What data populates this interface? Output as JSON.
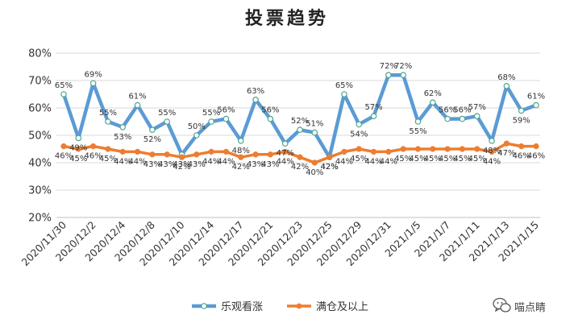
{
  "chart_data": {
    "type": "line",
    "title": "投票趋势",
    "xlabel": "",
    "ylabel": "",
    "ylim": [
      20,
      80
    ],
    "yticks": [
      20,
      30,
      40,
      50,
      60,
      70,
      80
    ],
    "ytick_labels": [
      "20%",
      "30%",
      "40%",
      "50%",
      "60%",
      "70%",
      "80%"
    ],
    "grid": "horizontal",
    "legend_position": "bottom",
    "categories": [
      "2020/11/30",
      "2020/12/1",
      "2020/12/2",
      "2020/12/3",
      "2020/12/4",
      "2020/12/7",
      "2020/12/8",
      "2020/12/9",
      "2020/12/10",
      "2020/12/11",
      "2020/12/14",
      "2020/12/15",
      "2020/12/17",
      "2020/12/18",
      "2020/12/21",
      "2020/12/22",
      "2020/12/23",
      "2020/12/24",
      "2020/12/25",
      "2020/12/28",
      "2020/12/29",
      "2020/12/30",
      "2020/12/31",
      "2021/1/4",
      "2021/1/5",
      "2021/1/6",
      "2021/1/7",
      "2021/1/8",
      "2021/1/11",
      "2021/1/12",
      "2021/1/13",
      "2021/1/14",
      "2021/1/15"
    ],
    "visible_tick_labels": [
      "2020/11/30",
      "2020/12/2",
      "2020/12/4",
      "2020/12/8",
      "2020/12/10",
      "2020/12/14",
      "2020/12/17",
      "2020/12/21",
      "2020/12/23",
      "2020/12/25",
      "2020/12/29",
      "2020/12/31",
      "2021/1/5",
      "2021/1/7",
      "2021/1/11",
      "2021/1/13",
      "2021/1/15"
    ],
    "series": [
      {
        "name": "乐观看涨",
        "color": "#5b9bd5",
        "marker": "circle",
        "values": [
          65,
          49,
          69,
          55,
          53,
          61,
          52,
          55,
          43,
          50,
          55,
          56,
          48,
          63,
          56,
          47,
          52,
          51,
          42,
          65,
          54,
          57,
          72,
          72,
          55,
          62,
          56,
          56,
          57,
          48,
          68,
          59,
          61
        ],
        "labels": [
          "65%",
          "49%",
          "69%",
          "55%",
          "53%",
          "61%",
          "52%",
          "55%",
          "43%",
          "50%",
          "55%",
          "56%",
          "48%",
          "63%",
          "56%",
          "47%",
          "52%",
          "51%",
          "42%",
          "65%",
          "54%",
          "57%",
          "72%",
          "72%",
          "55%",
          "62%",
          "56%",
          "56%",
          "57%",
          "48%",
          "68%",
          "59%",
          "61%"
        ]
      },
      {
        "name": "满仓及以上",
        "color": "#ed7d31",
        "marker": "circle",
        "values": [
          46,
          45,
          46,
          45,
          44,
          44,
          43,
          43,
          42,
          43,
          44,
          44,
          42,
          43,
          43,
          44,
          42,
          40,
          42,
          44,
          45,
          44,
          44,
          45,
          45,
          45,
          45,
          45,
          45,
          44,
          47,
          46,
          46
        ],
        "labels": [
          "46%",
          "45%",
          "46%",
          "45%",
          "44%",
          "44%",
          "43%",
          "43%",
          "42%",
          "43%",
          "44%",
          "44%",
          "42%",
          "43%",
          "43%",
          "44%",
          "42%",
          "40%",
          "42%",
          "44%",
          "45%",
          "44%",
          "44%",
          "45%",
          "45%",
          "45%",
          "45%",
          "45%",
          "45%",
          "44%",
          "47%",
          "46%",
          "46%"
        ]
      }
    ]
  },
  "watermark": {
    "icon": "wechat-chat-icon",
    "text": "喵点睛"
  },
  "colors": {
    "grid": "#d9d9d9",
    "axis": "#bfbfbf",
    "text": "#333333"
  }
}
